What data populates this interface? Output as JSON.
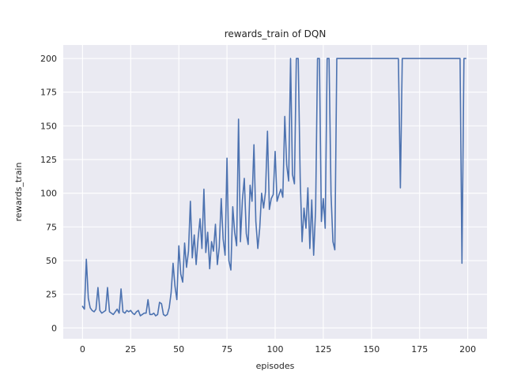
{
  "figure": {
    "background_color": "#ffffff",
    "axes_background_color": "#eaeaf2",
    "grid_color": "#ffffff",
    "line_color": "#4c72b0",
    "text_color": "#262626"
  },
  "chart_data": {
    "type": "line",
    "title": "rewards_train of DQN",
    "xlabel": "episodes",
    "ylabel": "rewards_train",
    "xlim": [
      -10,
      210
    ],
    "ylim": [
      -8,
      210
    ],
    "xticks": [
      0,
      25,
      50,
      75,
      100,
      125,
      150,
      175,
      200
    ],
    "yticks": [
      0,
      25,
      50,
      75,
      100,
      125,
      150,
      175,
      200
    ],
    "grid": true,
    "legend_position": "none",
    "series": [
      {
        "name": "rewards_train",
        "x_is_episode_index": true,
        "values": [
          16,
          14,
          51,
          22,
          15,
          13,
          12,
          14,
          30,
          13,
          11,
          12,
          13,
          30,
          12,
          11,
          10,
          12,
          14,
          11,
          29,
          12,
          11,
          13,
          12,
          13,
          11,
          10,
          12,
          13,
          9,
          10,
          11,
          11,
          21,
          10,
          10,
          11,
          9,
          10,
          19,
          18,
          10,
          9,
          10,
          15,
          26,
          48,
          31,
          21,
          61,
          40,
          34,
          63,
          45,
          57,
          94,
          52,
          69,
          47,
          66,
          81,
          59,
          103,
          56,
          71,
          44,
          64,
          57,
          77,
          47,
          60,
          96,
          66,
          54,
          126,
          50,
          43,
          90,
          71,
          61,
          155,
          64,
          95,
          111,
          70,
          62,
          106,
          94,
          136,
          79,
          59,
          74,
          100,
          89,
          101,
          146,
          88,
          96,
          99,
          131,
          94,
          99,
          103,
          97,
          157,
          121,
          109,
          200,
          114,
          107,
          200,
          200,
          111,
          64,
          89,
          74,
          104,
          59,
          95,
          54,
          88,
          200,
          200,
          79,
          96,
          74,
          200,
          200,
          99,
          64,
          58,
          200,
          200,
          200,
          200,
          200,
          200,
          200,
          200,
          200,
          200,
          200,
          200,
          200,
          200,
          200,
          200,
          200,
          200,
          200,
          200,
          200,
          200,
          200,
          200,
          200,
          200,
          200,
          200,
          200,
          200,
          200,
          200,
          200,
          104,
          200,
          200,
          200,
          200,
          200,
          200,
          200,
          200,
          200,
          200,
          200,
          200,
          200,
          200,
          200,
          200,
          200,
          200,
          200,
          200,
          200,
          200,
          200,
          200,
          200,
          200,
          200,
          200,
          200,
          200,
          200,
          48,
          200,
          200
        ]
      }
    ]
  }
}
